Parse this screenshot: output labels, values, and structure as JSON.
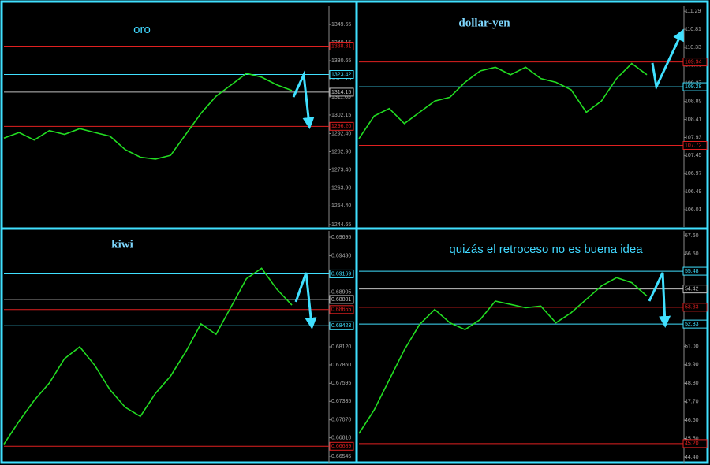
{
  "chart_data": [
    {
      "type": "line",
      "title": "oro",
      "color": "#22dd22",
      "values": [
        1290,
        1293,
        1289,
        1294,
        1292,
        1295,
        1293,
        1291,
        1284,
        1280,
        1279,
        1281,
        1292,
        1303,
        1312,
        1318,
        1324,
        1322,
        1318,
        1315
      ],
      "ylim": [
        1243.4,
        1359.2
      ],
      "yticks": [
        1349.65,
        1340.15,
        1330.65,
        1321.15,
        1311.65,
        1302.15,
        {
          "value": 1292.4,
          "label": "1292.40"
        },
        {
          "value": 1282.9,
          "label": "1282.90"
        },
        {
          "value": 1273.4,
          "label": "1273.40"
        },
        {
          "value": 1263.9,
          "label": "1263.90"
        },
        {
          "value": 1254.4,
          "label": "1254.40"
        },
        1244.65
      ],
      "levels": [
        {
          "value": 1338.31,
          "color": "#e02020"
        },
        {
          "value": 1323.42,
          "color": "#40e0ff"
        },
        {
          "value": 1314.15,
          "color": "#c0c0c0"
        },
        {
          "value": 1296.2,
          "label": "1296.20",
          "color": "#e02020"
        }
      ]
    },
    {
      "type": "line",
      "title": "dollar-yen",
      "color": "#22dd22",
      "values": [
        107.9,
        108.5,
        108.7,
        108.3,
        108.6,
        108.9,
        109.0,
        109.4,
        109.7,
        109.8,
        109.6,
        109.8,
        109.5,
        109.4,
        109.2,
        108.6,
        108.9,
        109.5,
        109.9,
        109.6
      ],
      "ylim": [
        105.55,
        111.42
      ],
      "yticks": [
        111.29,
        110.81,
        110.33,
        109.85,
        109.37,
        108.89,
        108.41,
        107.93,
        107.45,
        106.97,
        106.49,
        106.01
      ],
      "levels": [
        {
          "value": 109.94,
          "color": "#e02020"
        },
        {
          "value": 109.28,
          "color": "#40e0ff"
        },
        {
          "value": 107.72,
          "color": "#e02020"
        }
      ]
    },
    {
      "type": "line",
      "title": "kiwi",
      "color": "#22dd22",
      "values": [
        0.6672,
        0.6705,
        0.6735,
        0.676,
        0.6795,
        0.6812,
        0.6785,
        0.675,
        0.6725,
        0.6712,
        0.6745,
        0.677,
        0.6805,
        0.6845,
        0.683,
        0.687,
        0.691,
        0.6925,
        0.6895,
        0.6872
      ],
      "ylim": [
        0.66443,
        0.69786
      ],
      "yticks": [
        0.69695,
        {
          "value": 0.6943,
          "label": "0.69430"
        },
        0.68905,
        {
          "value": 0.6812,
          "label": "0.68120"
        },
        {
          "value": 0.6786,
          "label": "0.67860"
        },
        0.67595,
        0.67335,
        {
          "value": 0.6707,
          "label": "0.67070"
        },
        {
          "value": 0.6681,
          "label": "0.66810"
        },
        0.66545
      ],
      "levels": [
        {
          "value": 0.69169,
          "color": "#40e0ff"
        },
        {
          "value": 0.68801,
          "color": "#c0c0c0"
        },
        {
          "value": 0.68655,
          "color": "#e02020"
        },
        {
          "value": 0.68423,
          "color": "#40e0ff"
        },
        {
          "value": 0.66689,
          "color": "#e02020"
        }
      ]
    },
    {
      "type": "line",
      "title": "quizás el retroceso no es buena idea",
      "color": "#22dd22",
      "values": [
        45.8,
        47.2,
        49.0,
        50.8,
        52.3,
        53.2,
        52.4,
        52.0,
        52.6,
        53.7,
        53.5,
        53.3,
        53.4,
        52.4,
        53.0,
        53.8,
        54.6,
        55.1,
        54.8,
        54.0
      ],
      "ylim": [
        44.02,
        57.88
      ],
      "yticks": [
        {
          "value": 57.6,
          "label": "57.60"
        },
        {
          "value": 56.5,
          "label": "56.50"
        },
        {
          "value": 53.2,
          "label": "53.20"
        },
        {
          "value": 51,
          "label": "51.00"
        },
        {
          "value": 49.9,
          "label": "49.90"
        },
        {
          "value": 48.8,
          "label": "48.80"
        },
        {
          "value": 47.7,
          "label": "47.70"
        },
        {
          "value": 46.6,
          "label": "46.60"
        },
        {
          "value": 45.5,
          "label": "45.50"
        },
        {
          "value": 44.4,
          "label": "44.40"
        }
      ],
      "levels": [
        {
          "value": 55.48,
          "color": "#40e0ff"
        },
        {
          "value": 54.42,
          "color": "#c0c0c0"
        },
        {
          "value": 53.33,
          "color": "#e02020"
        },
        {
          "value": 52.33,
          "color": "#40e0ff"
        },
        {
          "value": 45.2,
          "label": "45.20",
          "color": "#e02020"
        }
      ]
    }
  ]
}
